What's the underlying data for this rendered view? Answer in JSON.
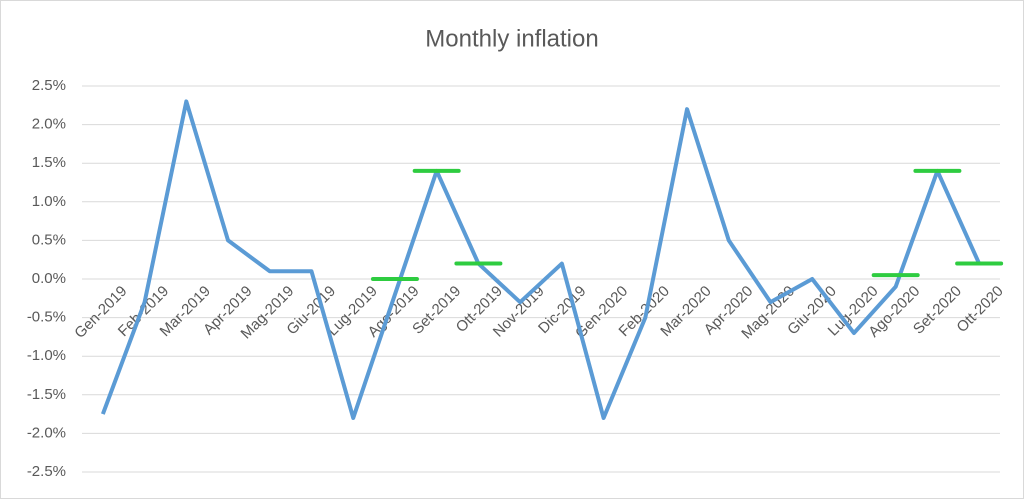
{
  "chart_data": {
    "type": "line",
    "title": "Monthly inflation",
    "categories": [
      "Gen-2019",
      "Feb-2019",
      "Mar-2019",
      "Apr-2019",
      "Mag-2019",
      "Giu-2019",
      "Lug-2019",
      "Ago-2019",
      "Set-2019",
      "Ott-2019",
      "Nov-2019",
      "Dic-2019",
      "Gen-2020",
      "Feb-2020",
      "Mar-2020",
      "Apr-2020",
      "Mag-2020",
      "Giu-2020",
      "Lug-2020",
      "Ago-2020",
      "Set-2020",
      "Ott-2020"
    ],
    "series": [
      {
        "color": "#5b9bd5",
        "values": [
          -1.75,
          -0.3,
          2.3,
          0.5,
          0.1,
          0.1,
          -1.8,
          -0.2,
          1.4,
          0.2,
          -0.3,
          0.2,
          -1.8,
          -0.5,
          2.2,
          0.5,
          -0.3,
          0.0,
          -0.7,
          -0.1,
          1.4,
          0.2
        ]
      },
      {
        "color": "#2ecc40",
        "values": [
          null,
          null,
          null,
          null,
          null,
          null,
          null,
          0.0,
          1.4,
          0.2,
          null,
          null,
          null,
          null,
          null,
          null,
          null,
          null,
          null,
          0.05,
          1.4,
          0.2
        ]
      }
    ],
    "ylim": [
      -2.5,
      2.5
    ],
    "yticks": [
      {
        "value": -2.5,
        "label": "-2.5%"
      },
      {
        "value": -2.0,
        "label": "-2.0%"
      },
      {
        "value": -1.5,
        "label": "-1.5%"
      },
      {
        "value": -1.0,
        "label": "-1.0%"
      },
      {
        "value": -0.5,
        "label": "-0.5%"
      },
      {
        "value": 0.0,
        "label": "0.0%"
      },
      {
        "value": 0.5,
        "label": "0.5%"
      },
      {
        "value": 1.0,
        "label": "1.0%"
      },
      {
        "value": 1.5,
        "label": "1.5%"
      },
      {
        "value": 2.0,
        "label": "2.0%"
      },
      {
        "value": 2.5,
        "label": "2.5%"
      }
    ],
    "grid": true
  }
}
